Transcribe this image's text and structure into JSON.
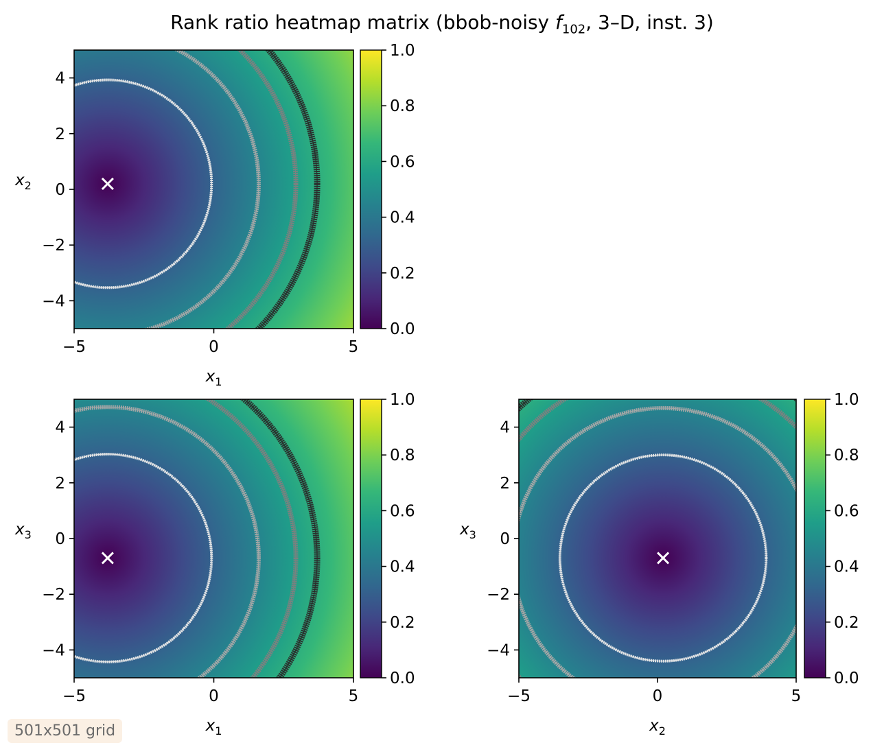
{
  "figure": {
    "title_prefix": "Rank ratio heatmap matrix (bbob-noisy ",
    "title_func": "f",
    "title_func_sub": "102",
    "title_suffix": ", 3–D, inst. 3)",
    "badge": "501x501 grid"
  },
  "chart_data": [
    {
      "type": "heatmap",
      "panel": "x1-x2",
      "xlabel_var": "x",
      "xlabel_sub": "1",
      "ylabel_var": "x",
      "ylabel_sub": "2",
      "xlim": [
        -5,
        5
      ],
      "ylim": [
        -5,
        5
      ],
      "xticks": [
        {
          "value": -5,
          "label": "−5"
        },
        {
          "value": 0,
          "label": "0"
        },
        {
          "value": 5,
          "label": "5"
        }
      ],
      "yticks": [
        {
          "value": -4,
          "label": "−4"
        },
        {
          "value": -2,
          "label": "−2"
        },
        {
          "value": 0,
          "label": "0"
        },
        {
          "value": 2,
          "label": "2"
        },
        {
          "value": 4,
          "label": "4"
        }
      ],
      "optimum": {
        "x": -3.8,
        "y": 0.2
      },
      "contour_levels": [
        0.25,
        0.5,
        0.75,
        0.9
      ],
      "colormap": "viridis",
      "colorbar": {
        "range": [
          0.0,
          1.0
        ],
        "ticks": [
          {
            "value": 0,
            "label": "0.0"
          },
          {
            "value": 0.2,
            "label": "0.2"
          },
          {
            "value": 0.4,
            "label": "0.4"
          },
          {
            "value": 0.6,
            "label": "0.6"
          },
          {
            "value": 0.8,
            "label": "0.8"
          },
          {
            "value": 1,
            "label": "1.0"
          }
        ]
      }
    },
    {
      "type": "heatmap",
      "panel": "x1-x3",
      "xlabel_var": "x",
      "xlabel_sub": "1",
      "ylabel_var": "x",
      "ylabel_sub": "3",
      "xlim": [
        -5,
        5
      ],
      "ylim": [
        -5,
        5
      ],
      "xticks": [
        {
          "value": -5,
          "label": "−5"
        },
        {
          "value": 0,
          "label": "0"
        },
        {
          "value": 5,
          "label": "5"
        }
      ],
      "yticks": [
        {
          "value": -4,
          "label": "−4"
        },
        {
          "value": -2,
          "label": "−2"
        },
        {
          "value": 0,
          "label": "0"
        },
        {
          "value": 2,
          "label": "2"
        },
        {
          "value": 4,
          "label": "4"
        }
      ],
      "optimum": {
        "x": -3.8,
        "y": -0.7
      },
      "contour_levels": [
        0.25,
        0.5,
        0.75,
        0.9
      ],
      "colormap": "viridis",
      "colorbar": {
        "range": [
          0.0,
          1.0
        ],
        "ticks": [
          {
            "value": 0,
            "label": "0.0"
          },
          {
            "value": 0.2,
            "label": "0.2"
          },
          {
            "value": 0.4,
            "label": "0.4"
          },
          {
            "value": 0.6,
            "label": "0.6"
          },
          {
            "value": 0.8,
            "label": "0.8"
          },
          {
            "value": 1,
            "label": "1.0"
          }
        ]
      }
    },
    {
      "type": "heatmap",
      "panel": "x2-x3",
      "xlabel_var": "x",
      "xlabel_sub": "2",
      "ylabel_var": "x",
      "ylabel_sub": "3",
      "xlim": [
        -5,
        5
      ],
      "ylim": [
        -5,
        5
      ],
      "xticks": [
        {
          "value": -5,
          "label": "−5"
        },
        {
          "value": 0,
          "label": "0"
        },
        {
          "value": 5,
          "label": "5"
        }
      ],
      "yticks": [
        {
          "value": -4,
          "label": "−4"
        },
        {
          "value": -2,
          "label": "−2"
        },
        {
          "value": 0,
          "label": "0"
        },
        {
          "value": 2,
          "label": "2"
        },
        {
          "value": 4,
          "label": "4"
        }
      ],
      "optimum": {
        "x": 0.2,
        "y": -0.7
      },
      "contour_levels": [
        0.25,
        0.5,
        0.75,
        0.9
      ],
      "colormap": "viridis",
      "colorbar": {
        "range": [
          0.0,
          1.0
        ],
        "ticks": [
          {
            "value": 0,
            "label": "0.0"
          },
          {
            "value": 0.2,
            "label": "0.2"
          },
          {
            "value": 0.4,
            "label": "0.4"
          },
          {
            "value": 0.6,
            "label": "0.6"
          },
          {
            "value": 0.8,
            "label": "0.8"
          },
          {
            "value": 1,
            "label": "1.0"
          }
        ]
      }
    }
  ],
  "colors": {
    "viridis": [
      "#440154",
      "#482878",
      "#3e4a89",
      "#31688e",
      "#26828e",
      "#1f9e89",
      "#35b779",
      "#6ece58",
      "#b5de2b",
      "#fde725"
    ],
    "contours": [
      "#e6e6e6",
      "#a6a6a6",
      "#7f7f7f",
      "#2b2b2b"
    ],
    "marker": "#ffffff"
  }
}
